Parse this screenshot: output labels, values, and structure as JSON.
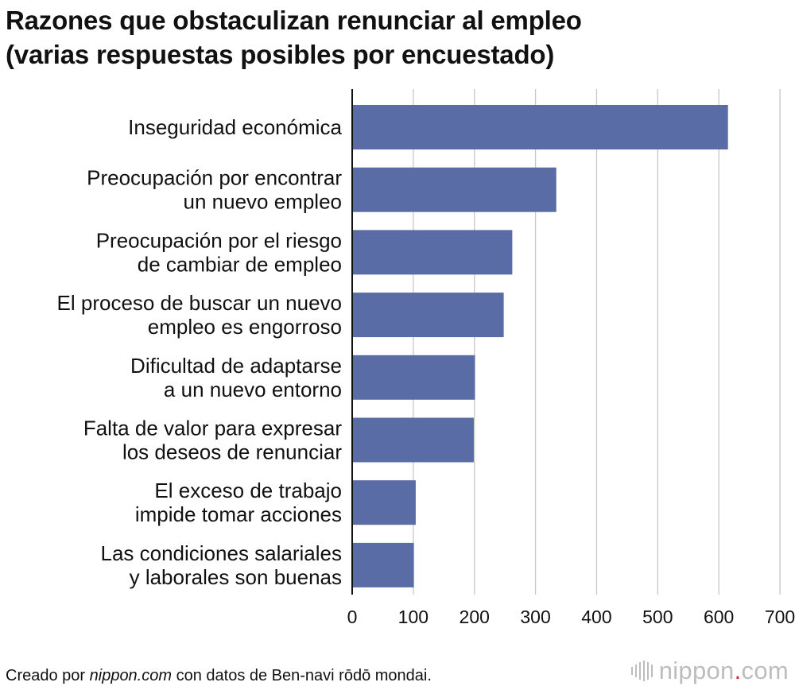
{
  "header": {
    "title_line1": "Razones que obstaculizan renunciar al empleo",
    "title_line2": "(varias respuestas posibles por encuestado)"
  },
  "footer": {
    "source_prefix": "Creado por ",
    "source_site": "nippon.com",
    "source_suffix": " con datos de Ben-navi rōdō mondai.",
    "brand_name": "nippon",
    "brand_dot": ".",
    "brand_tld": "com"
  },
  "colors": {
    "bar": "#5a6ca6",
    "grid": "#c8c8c8",
    "axis": "#111111",
    "brand_red": "#d9262c"
  },
  "chart_data": {
    "type": "bar",
    "orientation": "horizontal",
    "title": "Razones que obstaculizan renunciar al empleo (varias respuestas posibles por encuestado)",
    "categories": [
      [
        "Inseguridad económica"
      ],
      [
        "Preocupación por encontrar",
        "un nuevo empleo"
      ],
      [
        "Preocupación por el riesgo",
        "de cambiar de empleo"
      ],
      [
        "El proceso de buscar un nuevo",
        "empleo es engorroso"
      ],
      [
        "Dificultad de adaptarse",
        "a un nuevo entorno"
      ],
      [
        "Falta de valor para expresar",
        "los deseos de renunciar"
      ],
      [
        "El exceso de trabajo",
        "impide tomar acciones"
      ],
      [
        "Las condiciones salariales",
        "y laborales son buenas"
      ]
    ],
    "values": [
      615,
      334,
      262,
      248,
      201,
      199,
      104,
      101
    ],
    "xlim": [
      0,
      700
    ],
    "xticks": [
      0,
      100,
      200,
      300,
      400,
      500,
      600,
      700
    ],
    "grid": true,
    "legend": "none"
  }
}
